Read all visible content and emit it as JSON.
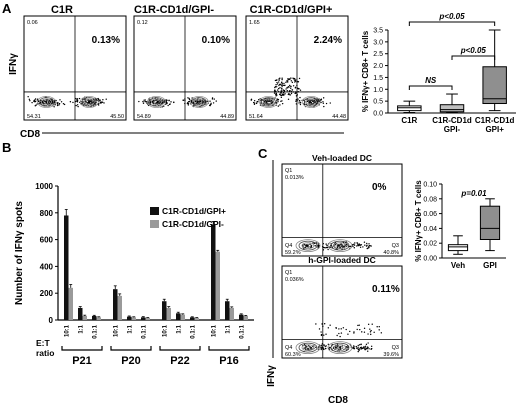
{
  "panels": {
    "a": "A",
    "b": "B",
    "c": "C"
  },
  "a": {
    "col_titles": [
      "C1R",
      "C1R-CD1d/GPI-",
      "C1R-CD1d/GPI+"
    ],
    "ylabel": "IFNγ",
    "xlabel": "CD8",
    "plots": [
      {
        "q": [
          "0.06",
          "0.13%",
          "54.31",
          "45.50"
        ]
      },
      {
        "q": [
          "0.12",
          "0.10%",
          "54.89",
          "44.89"
        ]
      },
      {
        "q": [
          "1.65",
          "2.24%",
          "51.64",
          "44.48"
        ]
      }
    ]
  },
  "b": {
    "ratio_label": "E:T ratio",
    "ratio_line1": "E:T",
    "ratio_line2": "ratio",
    "bar_xlabels": [
      "10:1",
      "1:1",
      "0.1:1"
    ]
  },
  "c": {
    "plots": [
      {
        "title": "Veh-loaded DC",
        "pct": "0%",
        "q1": "Q1",
        "q1v": "0.013%",
        "q4": "Q4",
        "q4v": "59.2%",
        "q3": "Q3",
        "q3v": "40.8%"
      },
      {
        "title": "h-GPI-loaded DC",
        "pct": "0.11%",
        "q1": "Q1",
        "q1v": "0.036%",
        "q4": "Q4",
        "q4v": "60.3%",
        "q3": "Q3",
        "q3v": "39.6%"
      }
    ],
    "ylabel": "IFNγ",
    "xlabel": "CD8"
  },
  "chart_data": [
    {
      "type": "box",
      "panel": "A",
      "ylabel": "% IFNγ+ CD8+ T cells",
      "ylim": [
        0,
        3.5
      ],
      "yticks": [
        "0.0",
        "0.5",
        "1.0",
        "1.5",
        "2.0",
        "2.5",
        "3.0",
        "3.5"
      ],
      "categories": [
        "C1R",
        "C1R-CD1d GPI-",
        "C1R-CD1d GPI+"
      ],
      "category_lines": [
        [
          "C1R"
        ],
        [
          "C1R-CD1d",
          "GPI-"
        ],
        [
          "C1R-CD1d",
          "GPI+"
        ]
      ],
      "boxes": [
        {
          "min": 0.02,
          "q1": 0.1,
          "median": 0.22,
          "q3": 0.3,
          "max": 0.5,
          "fill": "#ffffff"
        },
        {
          "min": 0.02,
          "q1": 0.05,
          "median": 0.14,
          "q3": 0.35,
          "max": 0.8,
          "fill": "#bfbfbf"
        },
        {
          "min": 0.1,
          "q1": 0.4,
          "median": 0.6,
          "q3": 1.95,
          "max": 3.5,
          "fill": "#8f8f8f"
        }
      ],
      "annotations": [
        {
          "text": "NS",
          "from": 0,
          "to": 1
        },
        {
          "text": "p<0.05",
          "from": 1,
          "to": 2
        },
        {
          "text": "p<0.05",
          "from": 0,
          "to": 2
        }
      ]
    },
    {
      "type": "bar",
      "panel": "B",
      "ylabel": "Number of IFNγ spots",
      "ylim": [
        0,
        1000
      ],
      "yticks": [
        "0",
        "200",
        "400",
        "600",
        "800",
        "1000"
      ],
      "groups": [
        "P21",
        "P20",
        "P22",
        "P16"
      ],
      "ratios": [
        "10:1",
        "1:1",
        "0.1:1"
      ],
      "series": [
        {
          "name": "C1R-CD1d/GPI+",
          "color": "#111111",
          "values": [
            [
              780,
              90,
              30
            ],
            [
              230,
              25,
              20
            ],
            [
              140,
              50,
              20
            ],
            [
              710,
              140,
              40
            ]
          ],
          "errors": [
            [
              45,
              10,
              5
            ],
            [
              25,
              5,
              5
            ],
            [
              15,
              8,
              4
            ],
            [
              25,
              15,
              6
            ]
          ]
        },
        {
          "name": "C1R-CD1d/GPI-",
          "color": "#9a9a9a",
          "values": [
            [
              240,
              30,
              20
            ],
            [
              180,
              20,
              15
            ],
            [
              90,
              40,
              15
            ],
            [
              510,
              90,
              30
            ]
          ],
          "errors": [
            [
              25,
              6,
              4
            ],
            [
              15,
              4,
              3
            ],
            [
              10,
              6,
              3
            ],
            [
              10,
              8,
              4
            ]
          ]
        }
      ]
    },
    {
      "type": "box",
      "panel": "C",
      "ylabel": "% IFNγ+ CD8+ T cells",
      "ylim": [
        0,
        0.1
      ],
      "yticks": [
        "0.00",
        "0.02",
        "0.04",
        "0.06",
        "0.08",
        "0.10"
      ],
      "categories": [
        "Veh",
        "GPI"
      ],
      "boxes": [
        {
          "min": 0.005,
          "q1": 0.01,
          "median": 0.015,
          "q3": 0.018,
          "max": 0.03,
          "fill": "#ffffff"
        },
        {
          "min": 0.01,
          "q1": 0.025,
          "median": 0.04,
          "q3": 0.07,
          "max": 0.08,
          "fill": "#8f8f8f"
        }
      ],
      "annotations": [
        {
          "text": "p=0.01",
          "from": 0,
          "to": 1
        }
      ]
    }
  ]
}
